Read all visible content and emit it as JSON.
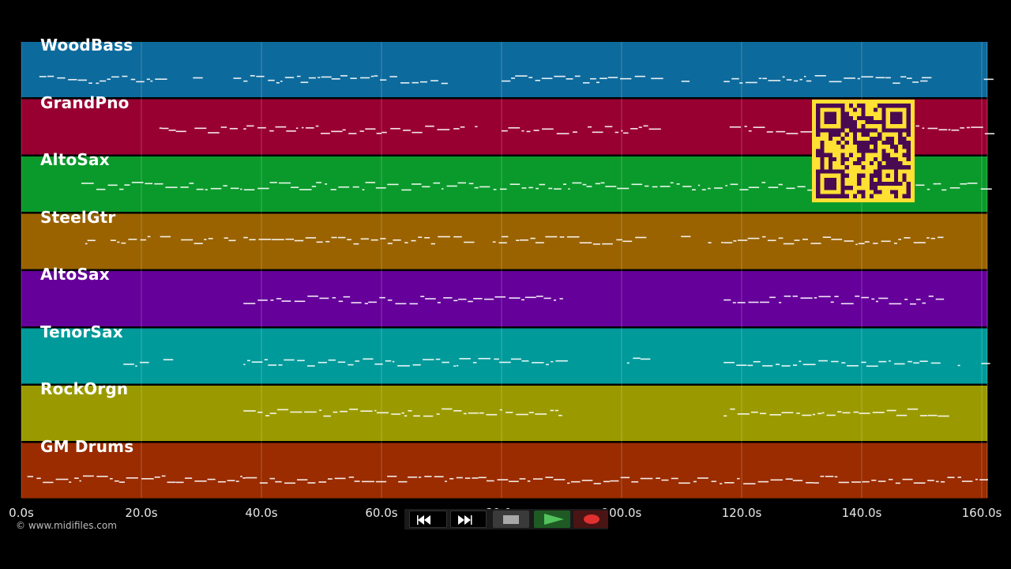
{
  "tracks": [
    {
      "name": "WoodBass",
      "color": "#0d6a9c"
    },
    {
      "name": "GrandPno",
      "color": "#990032"
    },
    {
      "name": "AltoSax",
      "color": "#0a9a2b"
    },
    {
      "name": "SteelGtr",
      "color": "#9a6300"
    },
    {
      "name": "AltoSax",
      "color": "#65009a"
    },
    {
      "name": "TenorSax",
      "color": "#019a9a"
    },
    {
      "name": "RockOrgn",
      "color": "#9a9a00"
    },
    {
      "name": "GM Drums",
      "color": "#9a2c00"
    }
  ],
  "timeline": {
    "max_seconds": 161,
    "ticks": [
      {
        "value": 0,
        "label": "0.0s"
      },
      {
        "value": 20,
        "label": "20.0s"
      },
      {
        "value": 40,
        "label": "40.0s"
      },
      {
        "value": 60,
        "label": "60.0s"
      },
      {
        "value": 80,
        "label": "80.0s"
      },
      {
        "value": 100,
        "label": "100.0s"
      },
      {
        "value": 120,
        "label": "120.0s"
      },
      {
        "value": 140,
        "label": "140.0s"
      },
      {
        "value": 160,
        "label": "160.0s"
      }
    ]
  },
  "copyright": "© www.midifiles.com",
  "transport": {
    "rewind_icon": "rewind-icon",
    "fast_forward_icon": "fast-forward-icon",
    "stop_icon": "stop-icon",
    "play_icon": "play-icon",
    "record_icon": "record-icon"
  },
  "qr_code": {
    "fg": "#4a0a52",
    "bg": "#ffe033"
  }
}
